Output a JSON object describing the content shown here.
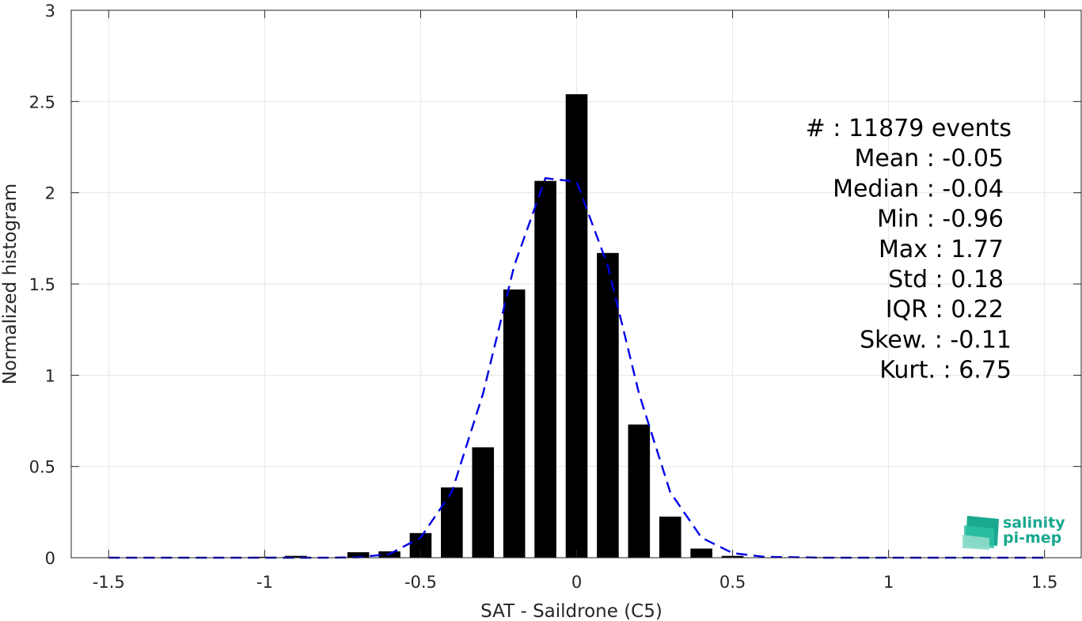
{
  "chart_data": {
    "type": "bar",
    "xlabel": "SAT - Saildrone (C5)",
    "ylabel": "Normalized histogram",
    "xlim": [
      -1.62,
      1.62
    ],
    "ylim": [
      0,
      3
    ],
    "xticks": [
      -1.5,
      -1,
      -0.5,
      0,
      0.5,
      1,
      1.5
    ],
    "xtick_labels": [
      "-1.5",
      "-1",
      "-0.5",
      "0",
      "0.5",
      "1",
      "1.5"
    ],
    "yticks": [
      0,
      0.5,
      1,
      1.5,
      2,
      2.5,
      3
    ],
    "ytick_labels": [
      "0",
      "0.5",
      "1",
      "1.5",
      "2",
      "2.5",
      "3"
    ],
    "grid": true,
    "bar_width": 0.07,
    "bars": {
      "x": [
        -1.5,
        -1.4,
        -1.3,
        -1.2,
        -1.1,
        -1.0,
        -0.9,
        -0.8,
        -0.7,
        -0.6,
        -0.5,
        -0.4,
        -0.3,
        -0.2,
        -0.1,
        0.0,
        0.1,
        0.2,
        0.3,
        0.4,
        0.5,
        0.6,
        0.7,
        0.8,
        0.9,
        1.0,
        1.1,
        1.2,
        1.3,
        1.4,
        1.5
      ],
      "values": [
        0,
        0,
        0,
        0,
        0,
        0.005,
        0.01,
        0,
        0.03,
        0.035,
        0.135,
        0.385,
        0.605,
        1.47,
        2.065,
        2.54,
        1.67,
        0.73,
        0.225,
        0.05,
        0.01,
        0,
        0.002,
        0.003,
        0,
        0.003,
        0,
        0,
        0,
        0,
        0.002
      ]
    },
    "fit": {
      "style": "dashed",
      "color": "#0000e6",
      "x": [
        -1.5,
        -1.2,
        -1.0,
        -0.8,
        -0.7,
        -0.6,
        -0.5,
        -0.4,
        -0.3,
        -0.2,
        -0.1,
        0.0,
        0.1,
        0.2,
        0.3,
        0.4,
        0.5,
        0.6,
        0.8,
        1.0,
        1.2,
        1.5
      ],
      "values": [
        0,
        0,
        0,
        0,
        0.002,
        0.02,
        0.11,
        0.36,
        0.9,
        1.6,
        2.08,
        2.06,
        1.6,
        0.9,
        0.36,
        0.11,
        0.025,
        0.005,
        0,
        0,
        0,
        0
      ]
    },
    "bar_color": "#000000",
    "annotation_lines": [
      "#  : 11879 events",
      "Mean : -0.05",
      "Median : -0.04",
      "Min : -0.96",
      "Max : 1.77",
      "Std : 0.18",
      "IQR : 0.22",
      "Skew. : -0.11",
      "Kurt. : 6.75"
    ]
  },
  "logo": {
    "line1": "salinity",
    "line2": "pi-mep",
    "color": "#1aa88f"
  }
}
